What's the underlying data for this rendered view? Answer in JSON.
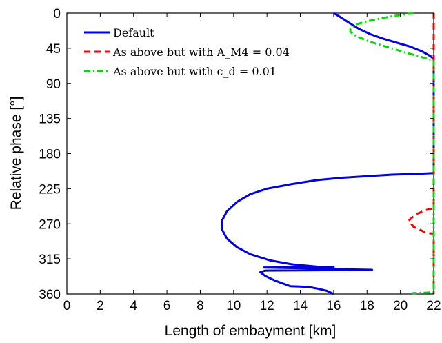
{
  "chart_data": {
    "type": "line",
    "title": "",
    "xlabel": "Length of embayment [km]",
    "ylabel": "Relative phase [°]",
    "xlim": [
      0,
      22
    ],
    "ylim": [
      360,
      0
    ],
    "y_axis_inverted": true,
    "x_ticks": [
      "0",
      "2",
      "4",
      "6",
      "8",
      "10",
      "12",
      "14",
      "16",
      "18",
      "20",
      "22"
    ],
    "y_ticks": [
      "0",
      "45",
      "90",
      "135",
      "180",
      "225",
      "270",
      "315",
      "360"
    ],
    "grid": false,
    "legend_position": "top-left",
    "series": [
      {
        "name": "Default",
        "color": "#0000e0",
        "dash": "solid",
        "points": [
          [
            16.0,
            0
          ],
          [
            16.4,
            5
          ],
          [
            16.9,
            12
          ],
          [
            17.5,
            20
          ],
          [
            18.2,
            27
          ],
          [
            19.0,
            33
          ],
          [
            19.8,
            38
          ],
          [
            20.6,
            43
          ],
          [
            21.3,
            49
          ],
          [
            21.8,
            55
          ],
          [
            22.0,
            59
          ],
          [
            22.0,
            120
          ],
          [
            22.0,
            205
          ],
          [
            21.0,
            206
          ],
          [
            19.5,
            207
          ],
          [
            18.0,
            209
          ],
          [
            16.5,
            211
          ],
          [
            15.0,
            214
          ],
          [
            13.5,
            219
          ],
          [
            12.0,
            225
          ],
          [
            11.0,
            232
          ],
          [
            10.2,
            242
          ],
          [
            9.6,
            254
          ],
          [
            9.3,
            266
          ],
          [
            9.3,
            277
          ],
          [
            9.6,
            289
          ],
          [
            10.2,
            300
          ],
          [
            11.0,
            309
          ],
          [
            12.2,
            317
          ],
          [
            13.5,
            322
          ],
          [
            15.0,
            325
          ],
          [
            16.0,
            325.5
          ],
          [
            11.8,
            326
          ],
          [
            16.0,
            328
          ],
          [
            18.3,
            329
          ],
          [
            11.9,
            330
          ],
          [
            11.6,
            332
          ],
          [
            11.9,
            337
          ],
          [
            12.5,
            343
          ],
          [
            13.4,
            350
          ],
          [
            14.5,
            351
          ],
          [
            15.0,
            353
          ],
          [
            15.6,
            356
          ],
          [
            16.0,
            360
          ]
        ]
      },
      {
        "name": "As above but with A_M4 = 0.04",
        "color": "#ff0000",
        "dash": "dashed",
        "points": [
          [
            22.0,
            0
          ],
          [
            22.0,
            250
          ],
          [
            21.6,
            252
          ],
          [
            20.9,
            258
          ],
          [
            20.5,
            266
          ],
          [
            20.8,
            274
          ],
          [
            21.5,
            281
          ],
          [
            22.0,
            283
          ],
          [
            22.0,
            360
          ]
        ]
      },
      {
        "name": "As above but with c_d = 0.01",
        "color": "#00dd00",
        "dash": "dashdot",
        "points": [
          [
            20.8,
            0
          ],
          [
            19.5,
            4
          ],
          [
            18.3,
            9
          ],
          [
            17.4,
            14
          ],
          [
            17.0,
            20
          ],
          [
            17.0,
            24
          ],
          [
            17.4,
            30
          ],
          [
            18.2,
            37
          ],
          [
            19.3,
            44
          ],
          [
            20.4,
            51
          ],
          [
            21.4,
            57
          ],
          [
            22.0,
            61
          ],
          [
            22.0,
            358
          ],
          [
            21.4,
            358.5
          ],
          [
            20.7,
            359
          ]
        ]
      }
    ]
  }
}
